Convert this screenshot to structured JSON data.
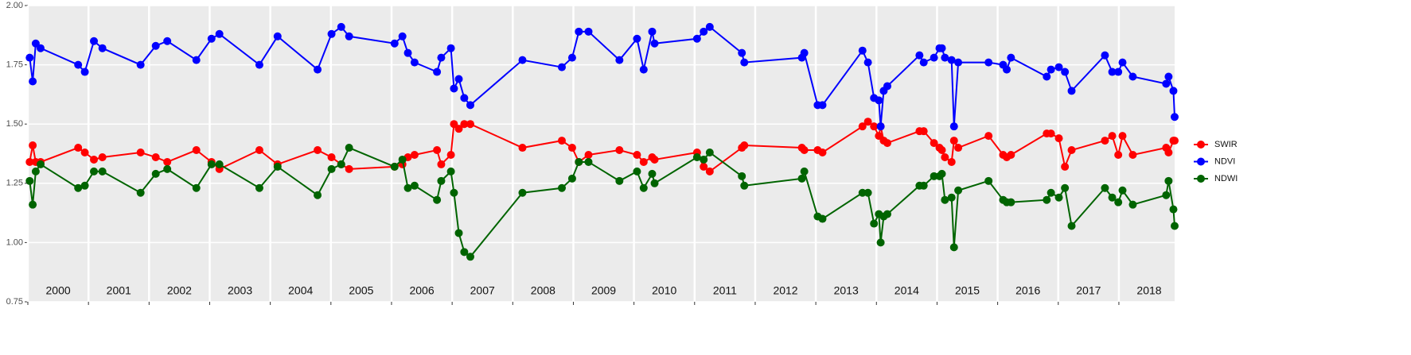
{
  "chart_data": {
    "type": "line",
    "x": [
      2000.03,
      2000.08,
      2000.13,
      2000.21,
      2000.83,
      2000.94,
      2001.09,
      2001.23,
      2001.86,
      2002.11,
      2002.3,
      2002.78,
      2003.03,
      2003.16,
      2003.82,
      2004.12,
      2004.78,
      2005.01,
      2005.17,
      2005.3,
      2006.05,
      2006.18,
      2006.27,
      2006.38,
      2006.75,
      2006.82,
      2006.98,
      2007.03,
      2007.11,
      2007.2,
      2007.3,
      2008.16,
      2008.81,
      2008.98,
      2009.09,
      2009.25,
      2009.76,
      2010.05,
      2010.16,
      2010.3,
      2010.34,
      2011.04,
      2011.15,
      2011.25,
      2011.78,
      2011.82,
      2012.77,
      2012.81,
      2013.03,
      2013.11,
      2013.77,
      2013.86,
      2013.96,
      2014.04,
      2014.07,
      2014.12,
      2014.18,
      2014.71,
      2014.78,
      2014.95,
      2015.04,
      2015.08,
      2015.13,
      2015.24,
      2015.28,
      2015.35,
      2015.85,
      2016.09,
      2016.15,
      2016.22,
      2016.81,
      2016.88,
      2017.01,
      2017.11,
      2017.22,
      2017.77,
      2017.89,
      2017.99,
      2018.06,
      2018.23,
      2018.78,
      2018.82,
      2018.9,
      2018.92
    ],
    "series": [
      {
        "name": "SWIR",
        "color": "#ff0000",
        "values": [
          1.34,
          1.41,
          1.34,
          1.34,
          1.4,
          1.38,
          1.35,
          1.36,
          1.38,
          1.36,
          1.34,
          1.39,
          1.34,
          1.31,
          1.39,
          1.33,
          1.39,
          1.36,
          1.33,
          1.31,
          1.32,
          1.33,
          1.36,
          1.37,
          1.39,
          1.33,
          1.37,
          1.5,
          1.48,
          1.5,
          1.5,
          1.4,
          1.43,
          1.4,
          1.34,
          1.37,
          1.39,
          1.37,
          1.34,
          1.36,
          1.35,
          1.38,
          1.32,
          1.3,
          1.4,
          1.41,
          1.4,
          1.39,
          1.39,
          1.38,
          1.49,
          1.51,
          1.49,
          1.45,
          1.49,
          1.43,
          1.42,
          1.47,
          1.47,
          1.42,
          1.4,
          1.39,
          1.36,
          1.34,
          1.43,
          1.4,
          1.45,
          1.37,
          1.36,
          1.37,
          1.46,
          1.46,
          1.44,
          1.32,
          1.39,
          1.43,
          1.45,
          1.37,
          1.45,
          1.37,
          1.4,
          1.38,
          1.43,
          1.43
        ]
      },
      {
        "name": "NDVI",
        "color": "#0000ff",
        "values": [
          1.78,
          1.68,
          1.84,
          1.82,
          1.75,
          1.72,
          1.85,
          1.82,
          1.75,
          1.83,
          1.85,
          1.77,
          1.86,
          1.88,
          1.75,
          1.87,
          1.73,
          1.88,
          1.91,
          1.87,
          1.84,
          1.87,
          1.8,
          1.76,
          1.72,
          1.78,
          1.82,
          1.65,
          1.69,
          1.61,
          1.58,
          1.77,
          1.74,
          1.78,
          1.89,
          1.89,
          1.77,
          1.86,
          1.73,
          1.89,
          1.84,
          1.86,
          1.89,
          1.91,
          1.8,
          1.76,
          1.78,
          1.8,
          1.58,
          1.58,
          1.81,
          1.76,
          1.61,
          1.6,
          1.49,
          1.64,
          1.66,
          1.79,
          1.76,
          1.78,
          1.82,
          1.82,
          1.78,
          1.77,
          1.49,
          1.76,
          1.76,
          1.75,
          1.73,
          1.78,
          1.7,
          1.73,
          1.74,
          1.72,
          1.64,
          1.79,
          1.72,
          1.72,
          1.76,
          1.7,
          1.67,
          1.7,
          1.64,
          1.53
        ]
      },
      {
        "name": "NDWI",
        "color": "#006400",
        "values": [
          1.26,
          1.16,
          1.3,
          1.33,
          1.23,
          1.24,
          1.3,
          1.3,
          1.21,
          1.29,
          1.31,
          1.23,
          1.33,
          1.33,
          1.23,
          1.32,
          1.2,
          1.31,
          1.33,
          1.4,
          1.32,
          1.35,
          1.23,
          1.24,
          1.18,
          1.26,
          1.3,
          1.21,
          1.04,
          0.96,
          0.94,
          1.21,
          1.23,
          1.27,
          1.34,
          1.34,
          1.26,
          1.3,
          1.23,
          1.29,
          1.25,
          1.36,
          1.35,
          1.38,
          1.28,
          1.24,
          1.27,
          1.3,
          1.11,
          1.1,
          1.21,
          1.21,
          1.08,
          1.12,
          1.0,
          1.11,
          1.12,
          1.24,
          1.24,
          1.28,
          1.28,
          1.29,
          1.18,
          1.19,
          0.98,
          1.22,
          1.26,
          1.18,
          1.17,
          1.17,
          1.18,
          1.21,
          1.19,
          1.23,
          1.07,
          1.23,
          1.19,
          1.17,
          1.22,
          1.16,
          1.2,
          1.26,
          1.14,
          1.07
        ]
      }
    ],
    "xlim": [
      2000,
      2018.92
    ],
    "xticks": [
      2000,
      2001,
      2002,
      2003,
      2004,
      2005,
      2006,
      2007,
      2008,
      2009,
      2010,
      2011,
      2012,
      2013,
      2014,
      2015,
      2016,
      2017,
      2018
    ],
    "ylim": [
      0.75,
      2.0
    ],
    "yticks": [
      {
        "value": 0.75,
        "label": "0.75"
      },
      {
        "value": 1.0,
        "label": "1.00"
      },
      {
        "value": 1.25,
        "label": "1.25"
      },
      {
        "value": 1.5,
        "label": "1.50"
      },
      {
        "value": 1.75,
        "label": "1.75"
      },
      {
        "value": 2.0,
        "label": "2.00"
      }
    ],
    "grid": true,
    "legend": "right"
  }
}
